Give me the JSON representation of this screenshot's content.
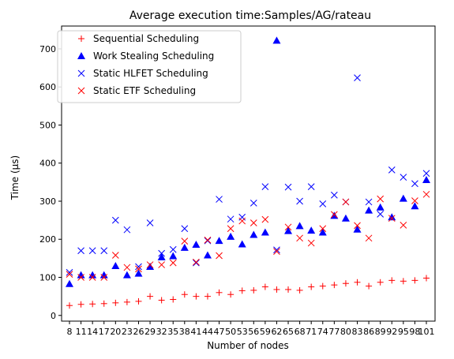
{
  "chart_data": {
    "type": "scatter",
    "title": "Average execution time:Samples/AG/rateau",
    "xlabel": "Number of nodes",
    "ylabel": "Time (µs)",
    "categories": [
      "8",
      "11",
      "14",
      "17",
      "20",
      "23",
      "26",
      "29",
      "32",
      "35",
      "38",
      "41",
      "44",
      "47",
      "50",
      "53",
      "56",
      "59",
      "62",
      "65",
      "68",
      "71",
      "74",
      "77",
      "80",
      "83",
      "86",
      "89",
      "92",
      "95",
      "98",
      "101"
    ],
    "ylim": [
      -15,
      760
    ],
    "yticks": [
      0,
      100,
      200,
      300,
      400,
      500,
      600,
      700
    ],
    "legend": "upper-left",
    "grid": false,
    "series": [
      {
        "name": "Sequential Scheduling",
        "marker": "plus",
        "color": "#ff0000",
        "values": [
          26,
          29,
          30,
          31,
          33,
          35,
          37,
          50,
          40,
          42,
          55,
          50,
          50,
          60,
          55,
          65,
          66,
          75,
          68,
          68,
          66,
          75,
          77,
          80,
          84,
          87,
          77,
          87,
          92,
          90,
          92,
          98
        ]
      },
      {
        "name": "Work Stealing Scheduling",
        "marker": "triangle",
        "color": "#0000ff",
        "values": [
          83,
          106,
          106,
          106,
          130,
          106,
          110,
          128,
          153,
          156,
          178,
          186,
          158,
          196,
          207,
          187,
          212,
          218,
          722,
          222,
          235,
          223,
          218,
          262,
          255,
          226,
          276,
          284,
          258,
          307,
          287,
          356
        ]
      },
      {
        "name": "Static HLFET Scheduling",
        "marker": "x",
        "color": "#0000ff",
        "values": [
          113,
          170,
          170,
          170,
          250,
          225,
          128,
          243,
          163,
          173,
          228,
          138,
          196,
          305,
          253,
          258,
          295,
          338,
          172,
          337,
          300,
          338,
          293,
          316,
          298,
          624,
          298,
          266,
          382,
          363,
          346,
          373
        ]
      },
      {
        "name": "Static ETF Scheduling",
        "marker": "x",
        "color": "#ff0000",
        "values": [
          108,
          100,
          100,
          100,
          158,
          126,
          122,
          133,
          133,
          138,
          195,
          140,
          198,
          157,
          228,
          248,
          243,
          252,
          168,
          232,
          203,
          190,
          228,
          265,
          298,
          236,
          203,
          306,
          255,
          237,
          301,
          318
        ]
      }
    ]
  }
}
